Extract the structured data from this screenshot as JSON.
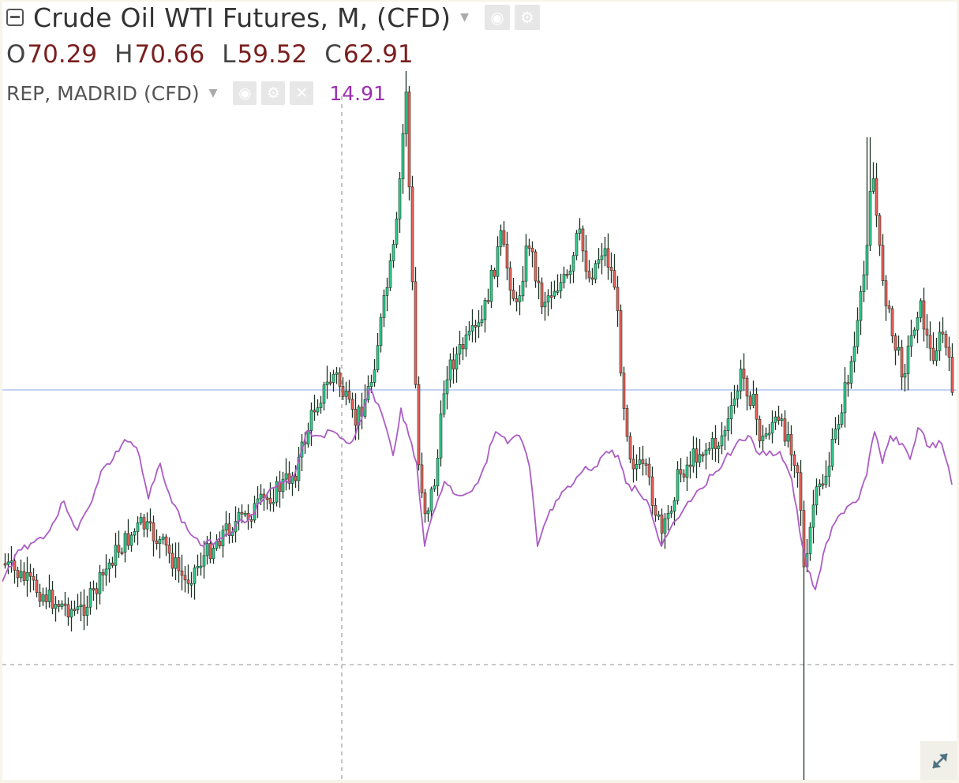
{
  "header": {
    "title": "Crude Oil WTI Futures, M, (CFD)",
    "ohlc": [
      {
        "key": "O",
        "value": "70.29"
      },
      {
        "key": "H",
        "value": "70.66"
      },
      {
        "key": "L",
        "value": "59.52"
      },
      {
        "key": "C",
        "value": "62.91"
      }
    ],
    "compare_symbol": "REP, MADRID (CFD)",
    "compare_value": "14.91"
  },
  "icons": {
    "collapse": "minus-square-icon",
    "dropdown": "caret-down-icon",
    "visibility": "eye-icon",
    "settings": "gear-icon",
    "remove": "close-icon",
    "expand": "expand-arrows-icon"
  },
  "colors": {
    "up_candle": "#2ecf8f",
    "down_candle": "#f0605a",
    "candle_wick": "#1d3324",
    "compare_line": "#ab5dc4",
    "price_line": "#9fb7f2",
    "crosshair": "#b5b5b5",
    "ohlc_values": "#7a1f1f",
    "compare_value": "#9b2fae"
  },
  "chart_data": {
    "type": "candlestick",
    "interval": "M",
    "series": [
      {
        "name": "Crude Oil WTI Futures, M, (CFD)",
        "type": "candlestick",
        "close_anchors": [
          [
            0,
            712
          ],
          [
            30,
            735
          ],
          [
            60,
            758
          ],
          [
            95,
            774
          ],
          [
            115,
            750
          ],
          [
            140,
            700
          ],
          [
            175,
            662
          ],
          [
            205,
            692
          ],
          [
            230,
            735
          ],
          [
            255,
            702
          ],
          [
            280,
            670
          ],
          [
            310,
            650
          ],
          [
            345,
            620
          ],
          [
            370,
            595
          ],
          [
            395,
            510
          ],
          [
            420,
            470
          ],
          [
            445,
            535
          ],
          [
            465,
            485
          ],
          [
            480,
            395
          ],
          [
            497,
            300
          ],
          [
            510,
            110
          ],
          [
            517,
            330
          ],
          [
            525,
            580
          ],
          [
            535,
            650
          ],
          [
            548,
            600
          ],
          [
            560,
            470
          ],
          [
            580,
            440
          ],
          [
            605,
            410
          ],
          [
            630,
            300
          ],
          [
            650,
            390
          ],
          [
            665,
            300
          ],
          [
            682,
            380
          ],
          [
            700,
            360
          ],
          [
            718,
            350
          ],
          [
            728,
            290
          ],
          [
            742,
            350
          ],
          [
            760,
            310
          ],
          [
            775,
            360
          ],
          [
            785,
            500
          ],
          [
            795,
            580
          ],
          [
            815,
            600
          ],
          [
            835,
            680
          ],
          [
            855,
            600
          ],
          [
            880,
            570
          ],
          [
            905,
            560
          ],
          [
            920,
            530
          ],
          [
            935,
            470
          ],
          [
            950,
            510
          ],
          [
            960,
            560
          ],
          [
            975,
            530
          ],
          [
            995,
            550
          ],
          [
            1008,
            600
          ],
          [
            1015,
            740
          ],
          [
            1025,
            640
          ],
          [
            1045,
            590
          ],
          [
            1060,
            520
          ],
          [
            1080,
            430
          ],
          [
            1092,
            330
          ],
          [
            1100,
            200
          ],
          [
            1110,
            320
          ],
          [
            1125,
            420
          ],
          [
            1140,
            470
          ],
          [
            1160,
            380
          ],
          [
            1175,
            450
          ],
          [
            1190,
            420
          ],
          [
            1203,
            490
          ]
        ],
        "spike_low_index": 1014
      },
      {
        "name": "REP, MADRID (CFD)",
        "type": "line",
        "points": [
          [
            0,
            735
          ],
          [
            20,
            695
          ],
          [
            40,
            685
          ],
          [
            60,
            670
          ],
          [
            78,
            633
          ],
          [
            95,
            670
          ],
          [
            110,
            640
          ],
          [
            125,
            595
          ],
          [
            140,
            580
          ],
          [
            155,
            555
          ],
          [
            170,
            565
          ],
          [
            185,
            630
          ],
          [
            200,
            585
          ],
          [
            215,
            635
          ],
          [
            235,
            670
          ],
          [
            255,
            690
          ],
          [
            275,
            680
          ],
          [
            295,
            665
          ],
          [
            315,
            650
          ],
          [
            335,
            625
          ],
          [
            355,
            610
          ],
          [
            370,
            600
          ],
          [
            385,
            545
          ],
          [
            400,
            550
          ],
          [
            420,
            545
          ],
          [
            440,
            560
          ],
          [
            455,
            530
          ],
          [
            465,
            490
          ],
          [
            480,
            520
          ],
          [
            495,
            575
          ],
          [
            505,
            515
          ],
          [
            515,
            550
          ],
          [
            525,
            585
          ],
          [
            535,
            690
          ],
          [
            545,
            650
          ],
          [
            560,
            608
          ],
          [
            575,
            625
          ],
          [
            595,
            620
          ],
          [
            610,
            590
          ],
          [
            625,
            545
          ],
          [
            640,
            560
          ],
          [
            655,
            550
          ],
          [
            668,
            590
          ],
          [
            678,
            690
          ],
          [
            690,
            655
          ],
          [
            705,
            630
          ],
          [
            720,
            615
          ],
          [
            735,
            595
          ],
          [
            750,
            590
          ],
          [
            765,
            570
          ],
          [
            780,
            575
          ],
          [
            790,
            610
          ],
          [
            805,
            620
          ],
          [
            820,
            640
          ],
          [
            835,
            690
          ],
          [
            850,
            660
          ],
          [
            865,
            640
          ],
          [
            880,
            620
          ],
          [
            900,
            600
          ],
          [
            915,
            580
          ],
          [
            930,
            560
          ],
          [
            945,
            550
          ],
          [
            955,
            570
          ],
          [
            968,
            575
          ],
          [
            985,
            570
          ],
          [
            1000,
            605
          ],
          [
            1010,
            670
          ],
          [
            1020,
            720
          ],
          [
            1030,
            745
          ],
          [
            1040,
            700
          ],
          [
            1055,
            660
          ],
          [
            1070,
            640
          ],
          [
            1085,
            630
          ],
          [
            1095,
            600
          ],
          [
            1105,
            545
          ],
          [
            1115,
            585
          ],
          [
            1125,
            550
          ],
          [
            1140,
            560
          ],
          [
            1150,
            580
          ],
          [
            1160,
            540
          ],
          [
            1175,
            565
          ],
          [
            1190,
            560
          ],
          [
            1203,
            612
          ]
        ]
      }
    ],
    "price_line_level": "62.91",
    "grid": false,
    "legend": "top-left"
  }
}
